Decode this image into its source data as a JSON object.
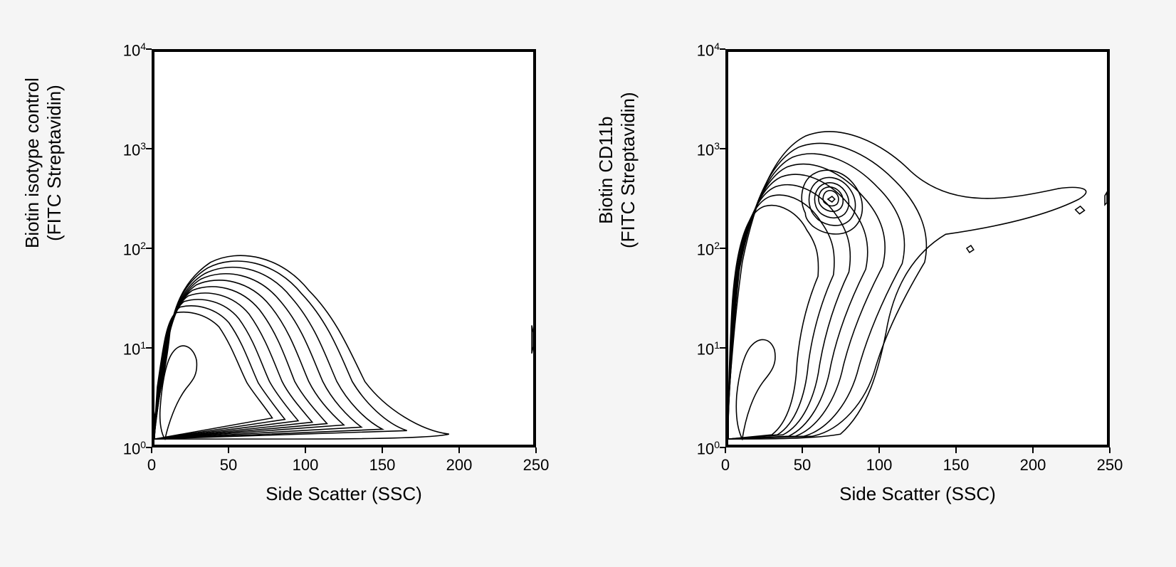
{
  "figure": {
    "background_color": "#f5f5f5",
    "plot_background": "#ffffff",
    "border_color": "#000000",
    "border_width": 4,
    "contour_stroke": "#000000",
    "contour_stroke_width": 1.6,
    "font_family": "Arial",
    "panels": [
      {
        "id": "left",
        "ylabel_line1": "Biotin isotype control",
        "ylabel_line2": "(FITC Streptavidin)",
        "xlabel": "Side Scatter (SSC)",
        "x_axis": {
          "min": 0,
          "max": 250,
          "ticks": [
            0,
            50,
            100,
            150,
            200,
            250
          ],
          "type": "linear"
        },
        "y_axis": {
          "min_exp": 0,
          "max_exp": 4,
          "ticks_exp": [
            0,
            1,
            2,
            3,
            4
          ],
          "tick_base": 10,
          "type": "log"
        },
        "label_fontsize": 26,
        "tick_fontsize": 22,
        "contours": [
          "M 0 520 C 10 480 18 440 22 400 C 30 350 50 320 80 300 C 120 280 180 290 220 340 C 260 380 280 430 300 470 C 330 510 380 540 420 545 C 400 550 320 552 200 552 L 0 552 Z",
          "M 0 530 C 8 490 14 450 20 410 C 28 355 48 325 76 308 C 115 288 172 298 210 345 C 248 385 265 432 282 470 C 300 500 330 530 360 540 L 0 552 Z",
          "M 0 535 C 6 500 12 460 18 420 C 26 365 44 332 72 316 C 108 298 160 306 195 350 C 230 390 244 434 260 470 C 275 498 300 525 325 538 L 0 552 Z",
          "M 0 540 C 5 508 10 470 16 430 C 24 375 40 340 66 324 C 100 308 148 316 180 356 C 212 394 225 436 240 470 C 253 496 275 520 295 535 L 0 552 Z",
          "M 0 544 C 4 514 8 478 14 440 C 22 385 36 348 60 332 C 92 318 136 326 165 362 C 194 398 206 438 220 470 C 232 494 252 516 270 532 L 0 552 Z",
          "M 0 546 C 3 518 6 484 12 448 C 20 393 32 355 54 340 C 84 328 124 336 150 368 C 176 402 188 440 200 470 C 212 492 230 512 246 530 L 0 552 Z",
          "M 0 548 C 2 522 5 490 10 455 C 18 400 28 362 48 348 C 76 338 112 346 135 374 C 158 406 170 442 182 470 C 192 490 210 510 225 528 L 0 552 Z",
          "M 0 549 C 1 526 4 496 8 462 C 16 408 24 370 42 356 C 68 348 100 356 120 380 C 142 410 152 444 164 470 C 174 488 190 508 205 526 L 0 552 Z",
          "M 0 550 C 1 530 3 502 6 470 C 14 416 20 378 36 364 C 60 358 88 366 106 386 C 126 414 136 446 148 472 C 158 488 172 506 186 524 L 0 552 Z",
          "M 0 551 C 0 534 2 508 4 478 C 12 424 16 386 30 372 C 52 368 76 376 92 392 C 110 418 120 448 132 472 C 142 488 156 504 168 522 L 0 552 Z",
          "M 15 552 C 20 530 30 500 45 480 C 55 468 62 460 60 440 C 56 420 38 410 25 430 C 15 445 10 480 8 510 C 7 530 10 545 15 552 Z",
          "M 538 390 L 540 400 L 540 420 L 538 430 Z"
        ]
      },
      {
        "id": "right",
        "ylabel_line1": "Biotin CD11b",
        "ylabel_line2": "(FITC Streptavidin)",
        "xlabel": "Side Scatter (SSC)",
        "x_axis": {
          "min": 0,
          "max": 250,
          "ticks": [
            0,
            50,
            100,
            150,
            200,
            250
          ],
          "type": "linear"
        },
        "y_axis": {
          "min_exp": 0,
          "max_exp": 4,
          "ticks_exp": [
            0,
            1,
            2,
            3,
            4
          ],
          "tick_base": 10,
          "type": "log"
        },
        "label_fontsize": 26,
        "tick_fontsize": 22,
        "contours": [
          "M 0 500 C 5 440 10 370 20 300 C 40 200 70 140 110 120 C 160 100 220 130 260 170 C 320 225 400 210 470 195 C 500 190 525 195 500 210 C 450 235 380 250 310 260 C 260 290 235 340 225 400 C 215 450 200 510 160 545 C 120 552 60 552 0 552 Z",
          "M 0 510 C 4 450 8 380 16 310 C 34 215 62 155 100 136 C 146 118 200 146 236 182 C 270 215 290 255 280 300 C 250 350 225 400 210 450 C 196 500 160 540 120 548 L 0 552 Z",
          "M 0 518 C 3 458 7 390 14 320 C 30 228 56 168 92 150 C 134 134 182 160 214 194 C 244 224 258 260 248 302 C 222 350 200 400 186 450 C 174 498 144 538 108 548 L 0 552 Z",
          "M 0 524 C 2 466 6 398 12 330 C 26 240 50 180 84 164 C 122 150 164 174 192 206 C 218 234 230 266 220 306 C 196 352 176 400 164 448 C 154 496 128 536 96 548 L 0 552 Z",
          "M 0 528 C 1 472 5 406 10 340 C 22 250 44 192 76 178 C 110 166 148 188 172 218 C 194 244 204 272 196 310 C 174 354 156 400 146 448 C 138 494 116 534 86 548 L 0 552 Z",
          "M 0 532 C 1 478 4 414 8 350 C 18 260 38 204 68 192 C 98 182 132 202 152 230 C 170 254 178 278 172 314 C 152 356 138 400 130 448 C 124 492 106 532 78 546 L 0 552 Z",
          "M 0 535 C 0 484 3 422 6 360 C 14 270 32 216 60 206 C 86 198 116 216 132 242 C 148 264 154 284 150 318 C 132 358 120 400 114 446 C 110 490 96 530 70 546 L 0 552 Z",
          "M 0 538 C 0 490 2 430 5 370 C 10 280 26 228 52 220 C 74 214 100 230 112 254 C 126 274 130 290 128 320 C 112 358 102 398 98 444 C 96 488 86 528 62 546 L 0 552 Z",
          "M 20 552 C 25 520 35 490 50 470 C 62 455 70 445 66 425 C 60 408 45 405 32 420 C 22 432 15 460 12 490 C 10 520 14 540 20 552 Z",
          "M 110 230 C 100 210 105 185 120 175 C 140 162 165 170 180 190 C 195 210 195 235 180 250 C 162 266 135 260 120 248 C 112 240 110 235 110 230 Z",
          "M 118 225 C 112 210 116 192 128 184 C 143 174 162 180 173 195 C 184 210 184 228 173 240 C 160 252 140 248 128 239 C 122 233 119 229 118 225 Z",
          "M 125 220 C 121 209 124 196 133 190 C 144 183 158 187 166 198 C 174 209 174 222 166 231 C 156 240 142 237 133 231 C 128 227 126 223 125 220 Z",
          "M 130 216 C 127 208 130 199 136 195 C 144 190 154 193 160 201 C 165 208 165 217 160 223 C 153 230 143 228 136 223 C 132 220 131 218 130 216 Z",
          "M 136 213 C 134 208 136 202 140 199 C 145 196 151 198 155 203 C 158 207 158 213 155 217 C 150 221 144 220 140 217 C 137 215 136 214 136 213 Z",
          "M 142 210 L 148 206 L 152 210 L 148 214 Z",
          "M 340 280 L 346 276 L 350 282 L 344 286 Z",
          "M 495 225 L 502 220 L 508 226 L 501 231 Z",
          "M 537 205 L 540 200 L 540 215 L 537 218 Z"
        ]
      }
    ]
  }
}
